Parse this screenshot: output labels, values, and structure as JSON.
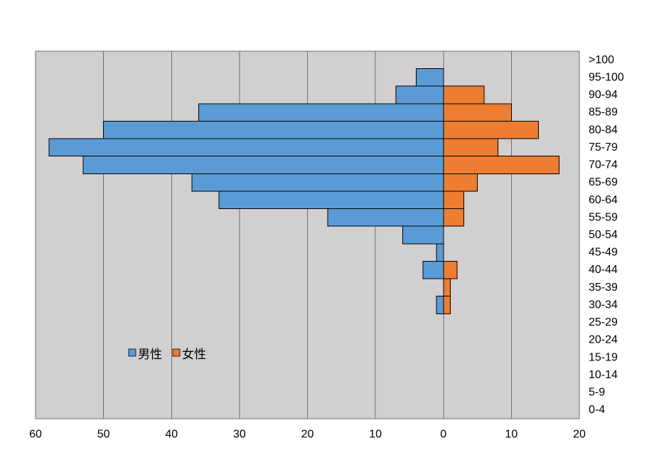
{
  "chart_data": {
    "type": "bar",
    "orientation": "horizontal",
    "layout": "population-pyramid",
    "title": "",
    "xlabel": "",
    "ylabel": "",
    "categories": [
      ">100",
      "95-100",
      "90-94",
      "85-89",
      "80-84",
      "75-79",
      "70-74",
      "65-69",
      "60-64",
      "55-59",
      "50-54",
      "45-49",
      "40-44",
      "35-39",
      "30-34",
      "25-29",
      "20-24",
      "15-19",
      "10-14",
      "5-9",
      "0-4"
    ],
    "series": [
      {
        "name": "男性",
        "side": "left",
        "color": "#5B9BD5",
        "values": [
          0,
          4,
          7,
          36,
          50,
          58,
          53,
          37,
          33,
          17,
          6,
          1,
          3,
          0,
          1,
          0,
          0,
          0,
          0,
          0,
          0
        ]
      },
      {
        "name": "女性",
        "side": "right",
        "color": "#ED7D31",
        "values": [
          0,
          0,
          6,
          10,
          14,
          8,
          17,
          5,
          3,
          3,
          0,
          0,
          2,
          1,
          1,
          0,
          0,
          0,
          0,
          0,
          0
        ]
      }
    ],
    "xticks": [
      "60",
      "50",
      "40",
      "30",
      "20",
      "10",
      "0",
      "10",
      "20"
    ],
    "xlim": {
      "left": 60,
      "right": 20
    },
    "grid": "vertical",
    "legend": {
      "position": "inside-lower-left"
    },
    "colors": {
      "plot_background": "#D1CFD0",
      "gridline": "#6F6F6F",
      "bar_border": "#000000"
    }
  }
}
